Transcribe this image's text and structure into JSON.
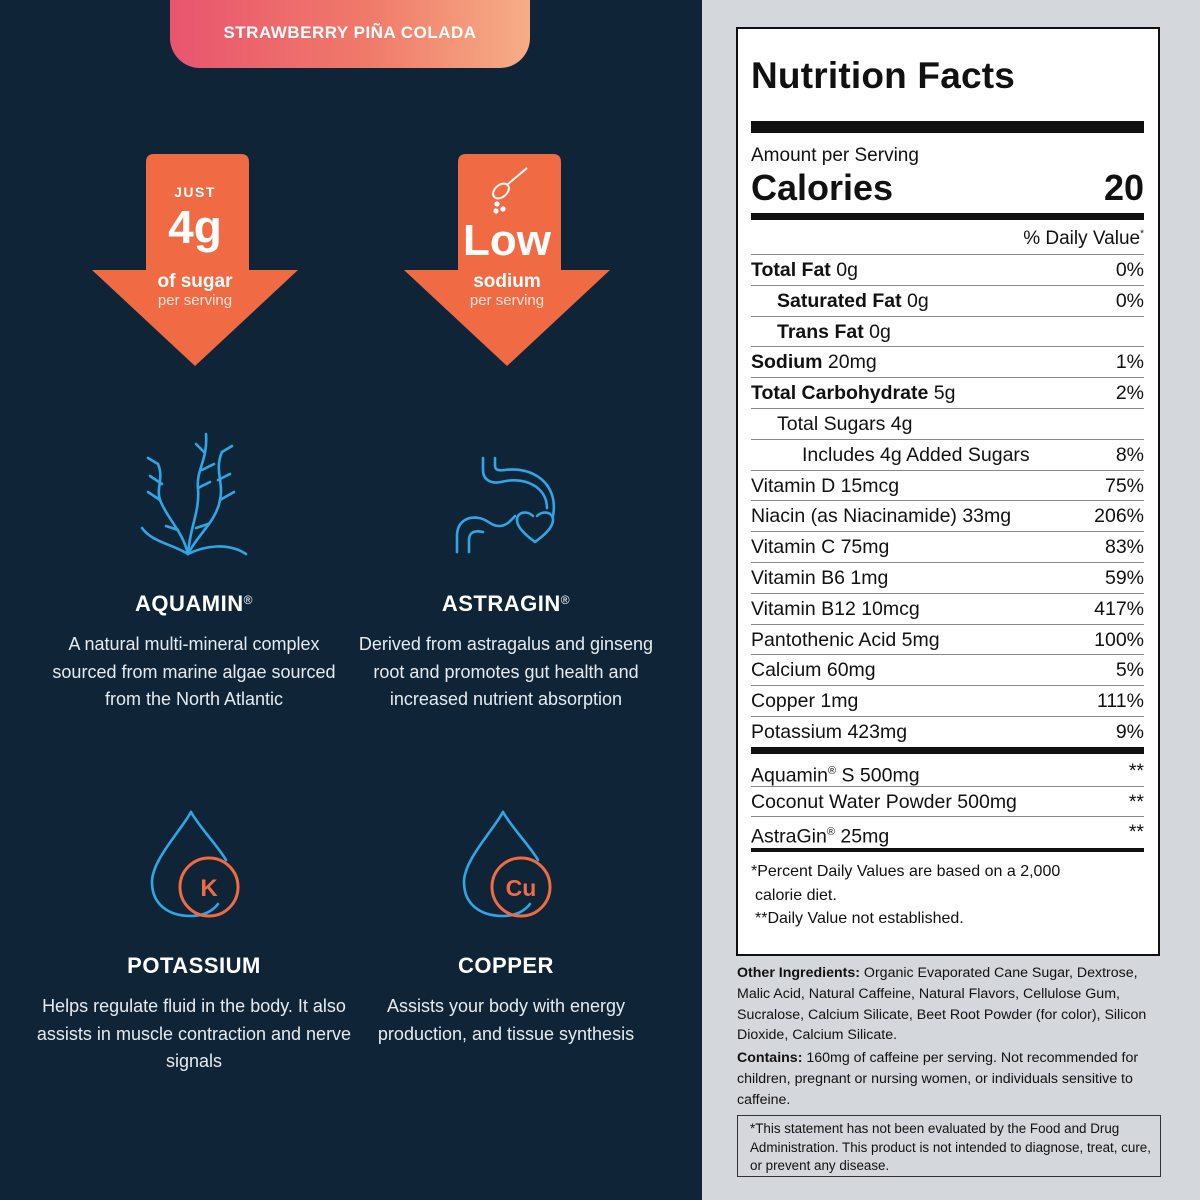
{
  "flavor": "STRAWBERRY PIÑA COLADA",
  "badges": {
    "sugar": {
      "top": "JUST",
      "big": "4g",
      "mid": "of sugar",
      "small": "per serving"
    },
    "sodium": {
      "big": "Low",
      "mid": "sodium",
      "small": "per serving",
      "icon": "spoon-icon"
    }
  },
  "features": {
    "aquamin": {
      "title": "AQUAMIN",
      "reg": "®",
      "text": "A natural multi-mineral complex sourced from marine algae sourced from the North Atlantic",
      "icon": "seaweed-icon"
    },
    "astragin": {
      "title": "ASTRAGIN",
      "reg": "®",
      "text": "Derived from astragalus and ginseng root and promotes gut health and increased nutrient absorption",
      "icon": "stomach-heart-icon"
    },
    "potassium": {
      "title": "POTASSIUM",
      "symbol": "K",
      "text": "Helps regulate fluid in the body. It also assists in muscle contraction and nerve signals",
      "icon": "droplet-k-icon"
    },
    "copper": {
      "title": "COPPER",
      "symbol": "Cu",
      "text": "Assists your body with energy production, and tissue synthesis",
      "icon": "droplet-cu-icon"
    }
  },
  "nutrition": {
    "title": "Nutrition Facts",
    "amount_per_serving": "Amount per Serving",
    "calories_label": "Calories",
    "calories_value": "20",
    "dv_header": "% Daily Value",
    "rows": [
      {
        "bold": "Total Fat",
        "rest": " 0g",
        "dv": "0%"
      },
      {
        "bold": "Saturated Fat",
        "rest": " 0g",
        "dv": "0%"
      },
      {
        "bold": "Trans Fat",
        "rest": " 0g",
        "dv": ""
      },
      {
        "bold": "Sodium",
        "rest": " 20mg",
        "dv": "1%"
      },
      {
        "bold": "Total Carbohydrate",
        "rest": " 5g",
        "dv": "2%"
      },
      {
        "bold": "",
        "rest": "Total Sugars 4g",
        "dv": ""
      },
      {
        "bold": "",
        "rest": "Includes 4g Added Sugars",
        "dv": "8%"
      },
      {
        "bold": "",
        "rest": "Vitamin D 15mcg",
        "dv": "75%"
      },
      {
        "bold": "",
        "rest": "Niacin (as Niacinamide) 33mg",
        "dv": "206%"
      },
      {
        "bold": "",
        "rest": "Vitamin C 75mg",
        "dv": "83%"
      },
      {
        "bold": "",
        "rest": "Vitamin B6 1mg",
        "dv": "59%"
      },
      {
        "bold": "",
        "rest": "Vitamin B12 10mcg",
        "dv": "417%"
      },
      {
        "bold": "",
        "rest": "Pantothenic Acid 5mg",
        "dv": "100%"
      },
      {
        "bold": "",
        "rest": "Calcium 60mg",
        "dv": "5%"
      },
      {
        "bold": "",
        "rest": "Copper 1mg",
        "dv": "111%"
      },
      {
        "bold": "",
        "rest": "Potassium 423mg",
        "dv": "9%"
      }
    ],
    "extras": [
      {
        "name": "Aquamin",
        "reg": "®",
        "rest": " S 500mg",
        "dv": "**"
      },
      {
        "name": "Coconut Water Powder 500mg",
        "reg": "",
        "rest": "",
        "dv": "**"
      },
      {
        "name": "AstraGin",
        "reg": "®",
        "rest": " 25mg",
        "dv": "**"
      }
    ],
    "footnote_1": "*Percent Daily Values are based on a 2,000",
    "footnote_2": "calorie diet.",
    "footnote_3": "**Daily Value not established."
  },
  "other_ingredients_label": "Other Ingredients:",
  "other_ingredients": " Organic Evaporated Cane Sugar, Dextrose, Malic Acid, Natural Caffeine, Natural Flavors, Cellulose Gum, Sucralose, Calcium Silicate, Beet Root Powder (for color), Silicon Dioxide, Calcium Silicate.",
  "contains_label": "Contains:",
  "contains": " 160mg of caffeine per serving. Not recommended for children, pregnant or nursing women, or individuals sensitive to caffeine.",
  "disclaimer": "*This statement has not been evaluated by the Food and Drug Administration. This product is not intended to diagnose, treat, cure, or prevent any disease.",
  "colors": {
    "navy": "#0f2537",
    "orange": "#f06b44",
    "blue": "#2fa6e6",
    "copper_orange": "#f06b44"
  }
}
